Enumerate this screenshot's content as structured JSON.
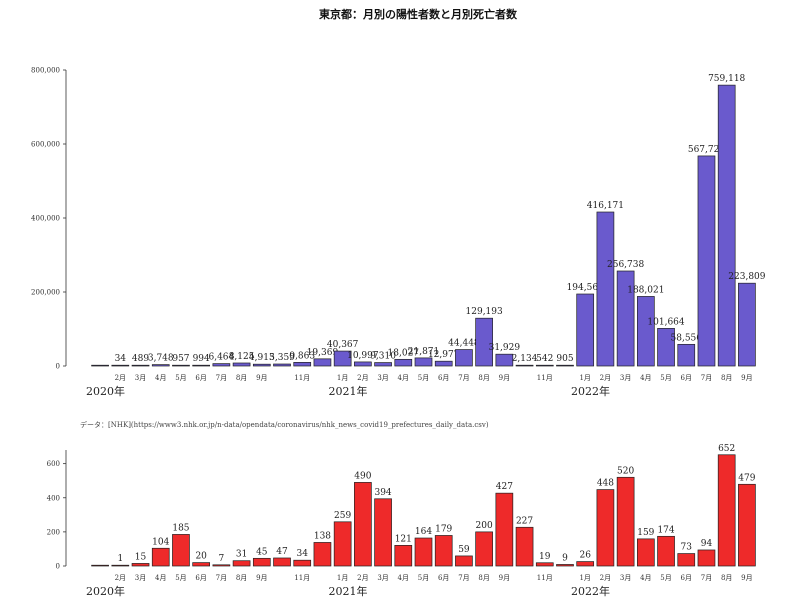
{
  "chart_data": [
    {
      "type": "bar",
      "title": "東京都：月別の陽性者数と月別死亡者数",
      "categories": [
        "2020-01",
        "2020-02",
        "2020-03",
        "2020-04",
        "2020-05",
        "2020-06",
        "2020-07",
        "2020-08",
        "2020-09",
        "2020-10",
        "2020-11",
        "2020-12",
        "2021-01",
        "2021-02",
        "2021-03",
        "2021-04",
        "2021-05",
        "2021-06",
        "2021-07",
        "2021-08",
        "2021-09",
        "2021-10",
        "2021-11",
        "2021-12",
        "2022-01",
        "2022-02",
        "2022-03",
        "2022-04",
        "2022-05",
        "2022-06",
        "2022-07",
        "2022-08",
        "2022-09"
      ],
      "month_labels": [
        "",
        "2月",
        "3月",
        "4月",
        "5月",
        "6月",
        "7月",
        "8月",
        "9月",
        "",
        "11月",
        "",
        "1月",
        "2月",
        "3月",
        "4月",
        "5月",
        "6月",
        "7月",
        "8月",
        "9月",
        "",
        "11月",
        "",
        "1月",
        "2月",
        "3月",
        "4月",
        "5月",
        "6月",
        "7月",
        "8月",
        "9月"
      ],
      "value_labels": [
        "",
        "34",
        "489",
        "3,748",
        "957",
        "994",
        "6,464",
        "8,125",
        "4,913",
        "5,359",
        "9,863",
        "19,369",
        "40,367",
        "10,997",
        "9,310",
        "18,027",
        "21,871",
        "12,977",
        "44,448",
        "129,193",
        "31,929",
        "2,134",
        "542",
        "905",
        "194,563",
        "416,171",
        "256,738",
        "188,021",
        "101,664",
        "58,556",
        "567,728",
        "759,118",
        "223,809"
      ],
      "values": [
        1,
        34,
        489,
        3748,
        957,
        994,
        6464,
        8125,
        4913,
        5359,
        9863,
        19369,
        40367,
        10997,
        9310,
        18027,
        21871,
        12977,
        44448,
        129193,
        31929,
        2134,
        542,
        905,
        194563,
        416171,
        256738,
        188021,
        101664,
        58556,
        567728,
        759118,
        223809
      ],
      "ylim": [
        0,
        800000
      ],
      "yticks": [
        "0",
        "200,000",
        "400,000",
        "600,000",
        "800,000"
      ],
      "ytick_values": [
        0,
        200000,
        400000,
        600000,
        800000
      ],
      "year_labels": [
        "2020年",
        "2021年",
        "2022年"
      ],
      "color": "#6a5acd"
    },
    {
      "type": "bar",
      "categories": [
        "2020-01",
        "2020-02",
        "2020-03",
        "2020-04",
        "2020-05",
        "2020-06",
        "2020-07",
        "2020-08",
        "2020-09",
        "2020-10",
        "2020-11",
        "2020-12",
        "2021-01",
        "2021-02",
        "2021-03",
        "2021-04",
        "2021-05",
        "2021-06",
        "2021-07",
        "2021-08",
        "2021-09",
        "2021-10",
        "2021-11",
        "2021-12",
        "2022-01",
        "2022-02",
        "2022-03",
        "2022-04",
        "2022-05",
        "2022-06",
        "2022-07",
        "2022-08",
        "2022-09"
      ],
      "month_labels": [
        "",
        "2月",
        "3月",
        "4月",
        "5月",
        "6月",
        "7月",
        "8月",
        "9月",
        "",
        "11月",
        "",
        "1月",
        "2月",
        "3月",
        "4月",
        "5月",
        "6月",
        "7月",
        "8月",
        "9月",
        "",
        "11月",
        "",
        "1月",
        "2月",
        "3月",
        "4月",
        "5月",
        "6月",
        "7月",
        "8月",
        "9月"
      ],
      "value_labels": [
        "",
        "1",
        "15",
        "104",
        "185",
        "20",
        "7",
        "31",
        "45",
        "47",
        "34",
        "138",
        "259",
        "490",
        "394",
        "121",
        "164",
        "179",
        "59",
        "200",
        "427",
        "227",
        "19",
        "9",
        "26",
        "448",
        "520",
        "159",
        "174",
        "73",
        "94",
        "652",
        "479"
      ],
      "values": [
        0,
        1,
        15,
        104,
        185,
        20,
        7,
        31,
        45,
        47,
        34,
        138,
        259,
        490,
        394,
        121,
        164,
        179,
        59,
        200,
        427,
        227,
        19,
        9,
        26,
        448,
        520,
        159,
        174,
        73,
        94,
        652,
        479
      ],
      "ylim": [
        0,
        680
      ],
      "yticks": [
        "0",
        "200",
        "400",
        "600"
      ],
      "ytick_values": [
        0,
        200,
        400,
        600
      ],
      "year_labels": [
        "2020年",
        "2021年",
        "2022年"
      ],
      "color": "#ee2a2a"
    }
  ],
  "source": "データ：[NHK](https://www3.nhk.or.jp/n-data/opendata/coronavirus/nhk_news_covid19_prefectures_daily_data.csv)"
}
